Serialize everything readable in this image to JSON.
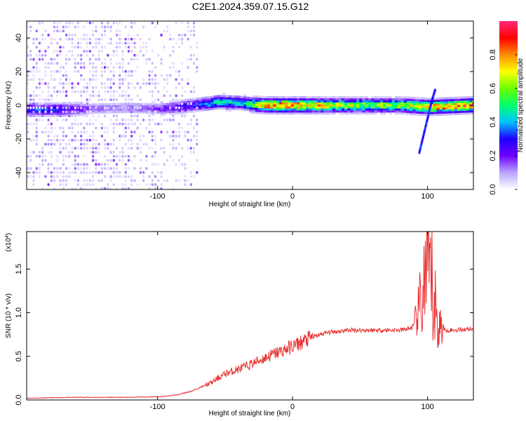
{
  "figure_title": "C2E1.2024.359.07.15.G12",
  "chart_data": [
    {
      "type": "heatmap",
      "xlabel": "Height of straight line (km)",
      "ylabel": "Frequency (Hz)",
      "xlim": [
        -197,
        134
      ],
      "ylim": [
        -50,
        50
      ],
      "xticks": [
        -100,
        0,
        100
      ],
      "yticks": [
        -40,
        -20,
        0,
        20,
        40
      ],
      "colorbar": {
        "label": "Normalized spectral amplitude",
        "range": [
          0,
          1
        ],
        "ticks": [
          "0.0",
          "0.2",
          "0.4",
          "0.6",
          "0.8"
        ],
        "colors": [
          "#ffffff",
          "#b9a6ff",
          "#7000ff",
          "#1f00ff",
          "#00c3ff",
          "#00ff6e",
          "#6bff00",
          "#ffff00",
          "#ff8c00",
          "#ff0000",
          "#ff2a78"
        ]
      },
      "ridge": [
        {
          "x": -175,
          "f": -2.5,
          "a": 0.3
        },
        {
          "x": -150,
          "f": -2.0,
          "a": 0.15
        },
        {
          "x": -125,
          "f": -1.5,
          "a": 0.12
        },
        {
          "x": -100,
          "f": -2.0,
          "a": 0.18
        },
        {
          "x": -85,
          "f": -1.0,
          "a": 0.25
        },
        {
          "x": -70,
          "f": 0.5,
          "a": 0.3
        },
        {
          "x": -55,
          "f": 2.0,
          "a": 0.45
        },
        {
          "x": -40,
          "f": 1.5,
          "a": 0.4
        },
        {
          "x": -30,
          "f": 0.5,
          "a": 0.55
        },
        {
          "x": -20,
          "f": 0.0,
          "a": 0.85
        },
        {
          "x": 0,
          "f": 0.0,
          "a": 0.85
        },
        {
          "x": 40,
          "f": 0.0,
          "a": 0.6
        },
        {
          "x": 80,
          "f": 0.0,
          "a": 0.6
        },
        {
          "x": 100,
          "f": -1.0,
          "a": 0.8
        },
        {
          "x": 130,
          "f": 0.0,
          "a": 0.85
        }
      ],
      "chirp": [
        {
          "x": 94,
          "f": -28
        },
        {
          "x": 97,
          "f": -18
        },
        {
          "x": 100,
          "f": -8
        },
        {
          "x": 103,
          "f": 2
        },
        {
          "x": 106,
          "f": 10
        }
      ]
    },
    {
      "type": "line",
      "xlabel": "Height of straight line (km)",
      "ylabel": "SNR (10 * v/v)",
      "scale_label": "(x10",
      "scale_exponent": "4",
      "xlim": [
        -197,
        134
      ],
      "ylim": [
        0,
        1.93
      ],
      "xticks": [
        -100,
        0,
        100
      ],
      "yticks": [
        "0.0",
        "0.5",
        "1.0",
        "1.5"
      ],
      "line_color": "#e83030",
      "series": [
        {
          "values": [
            [
              -197,
              0.02
            ],
            [
              -160,
              0.03
            ],
            [
              -120,
              0.03
            ],
            [
              -95,
              0.04
            ],
            [
              -85,
              0.06
            ],
            [
              -75,
              0.1
            ],
            [
              -60,
              0.2
            ],
            [
              -50,
              0.3
            ],
            [
              -35,
              0.38
            ],
            [
              -25,
              0.45
            ],
            [
              -15,
              0.52
            ],
            [
              -5,
              0.58
            ],
            [
              5,
              0.65
            ],
            [
              15,
              0.72
            ],
            [
              25,
              0.77
            ],
            [
              40,
              0.8
            ],
            [
              60,
              0.8
            ],
            [
              80,
              0.8
            ],
            [
              87,
              0.82
            ],
            [
              90,
              0.85
            ],
            [
              95,
              1.1
            ],
            [
              100,
              1.5
            ],
            [
              103,
              1.3
            ],
            [
              107,
              0.9
            ],
            [
              112,
              0.8
            ],
            [
              120,
              0.8
            ],
            [
              134,
              0.82
            ]
          ]
        }
      ]
    }
  ]
}
